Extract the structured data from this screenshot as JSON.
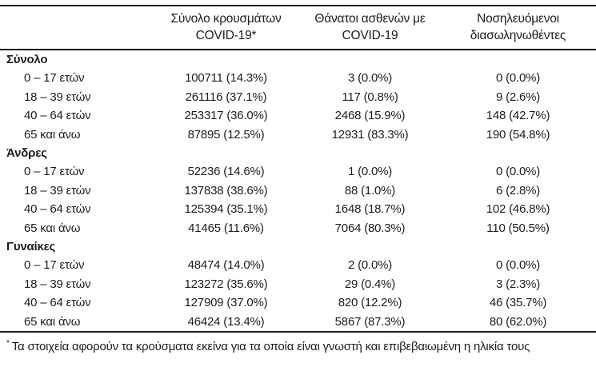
{
  "table": {
    "columns": [
      {
        "line1": "Σύνολο κρουσμάτων",
        "line2": "COVID-19*"
      },
      {
        "line1": "Θάνατοι ασθενών με",
        "line2": "COVID-19"
      },
      {
        "line1": "Νοσηλευόμενοι",
        "line2": "διασωληνωθέντες"
      }
    ],
    "sections": [
      {
        "label": "Σύνολο",
        "rows": [
          {
            "label": "0 – 17 ετών",
            "cases": "100711 (14.3%)",
            "deaths": "3 (0.0%)",
            "intubated": "0 (0.0%)"
          },
          {
            "label": "18 – 39 ετών",
            "cases": "261116 (37.1%)",
            "deaths": "117 (0.8%)",
            "intubated": "9 (2.6%)"
          },
          {
            "label": "40 – 64 ετών",
            "cases": "253317 (36.0%)",
            "deaths": "2468 (15.9%)",
            "intubated": "148 (42.7%)"
          },
          {
            "label": "65 και άνω",
            "cases": "87895 (12.5%)",
            "deaths": "12931 (83.3%)",
            "intubated": "190 (54.8%)"
          }
        ]
      },
      {
        "label": "Άνδρες",
        "rows": [
          {
            "label": "0 – 17 ετών",
            "cases": "52236 (14.6%)",
            "deaths": "1 (0.0%)",
            "intubated": "0 (0.0%)"
          },
          {
            "label": "18 – 39 ετών",
            "cases": "137838 (38.6%)",
            "deaths": "88 (1.0%)",
            "intubated": "6 (2.8%)"
          },
          {
            "label": "40 – 64 ετών",
            "cases": "125394 (35.1%)",
            "deaths": "1648 (18.7%)",
            "intubated": "102 (46.8%)"
          },
          {
            "label": "65 και άνω",
            "cases": "41465 (11.6%)",
            "deaths": "7064 (80.3%)",
            "intubated": "110 (50.5%)"
          }
        ]
      },
      {
        "label": "Γυναίκες",
        "rows": [
          {
            "label": "0 – 17 ετών",
            "cases": "48474 (14.0%)",
            "deaths": "2 (0.0%)",
            "intubated": "0 (0.0%)"
          },
          {
            "label": "18 – 39 ετών",
            "cases": "123272 (35.6%)",
            "deaths": "29 (0.4%)",
            "intubated": "3 (2.3%)"
          },
          {
            "label": "40 – 64 ετών",
            "cases": "127909 (37.0%)",
            "deaths": "820 (12.2%)",
            "intubated": "46 (35.7%)"
          },
          {
            "label": "65 και άνω",
            "cases": "46424 (13.4%)",
            "deaths": "5867 (87.3%)",
            "intubated": "80 (62.0%)"
          }
        ]
      }
    ]
  },
  "footnote": {
    "marker": "*",
    "text": "Τα στοιχεία αφορούν τα κρούσματα εκείνα για τα οποία είναι γνωστή και επιβεβαιωμένη η ηλικία τους"
  },
  "colors": {
    "text": "#1d1d1d",
    "rule": "#1f1f1f",
    "background": "#ffffff"
  }
}
